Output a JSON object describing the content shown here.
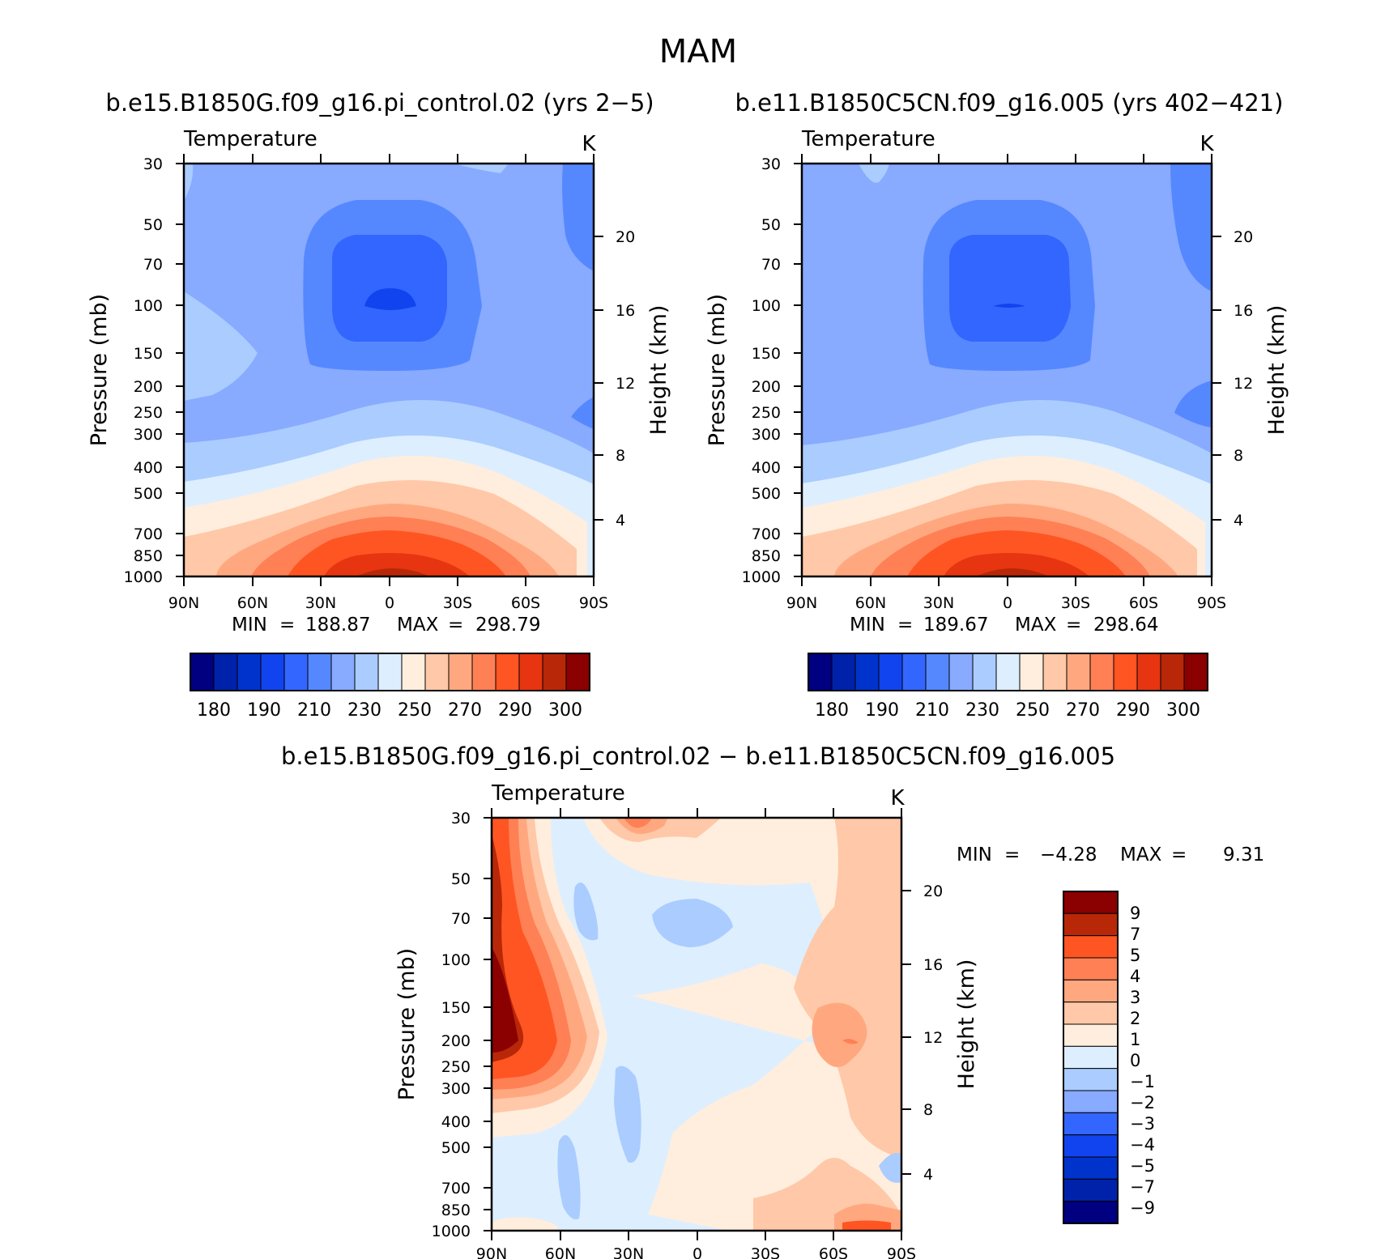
{
  "figure": {
    "season_title": "MAM"
  },
  "colors": {
    "abs_scale": [
      "#000080",
      "#0022AA",
      "#0033CC",
      "#1144EE",
      "#3366FF",
      "#5588FF",
      "#88AAFF",
      "#AACCFF",
      "#DDEEFF",
      "#FFEEDD",
      "#FFC8A8",
      "#FFA880",
      "#FF8055",
      "#FF5522",
      "#E63510",
      "#B82808",
      "#8B0000"
    ],
    "diff_scale": [
      "#000080",
      "#0022AA",
      "#0033CC",
      "#1144EE",
      "#3366FF",
      "#88AAFF",
      "#AACCFF",
      "#DDEEFF",
      "#FFEEDD",
      "#FFC8A8",
      "#FFA880",
      "#FF8055",
      "#FF5522",
      "#B82808",
      "#8B0000"
    ]
  },
  "chart_data": [
    {
      "type": "contour",
      "title": "b.e15.B1850G.f09_g16.pi_control.02 (yrs 2-5)",
      "variable": "Temperature",
      "units": "K",
      "ylabel": "Pressure (mb)",
      "y2label": "Height (km)",
      "x_ticks": [
        "90N",
        "60N",
        "30N",
        "0",
        "30S",
        "60S",
        "90S"
      ],
      "y_ticks": [
        "30",
        "50",
        "70",
        "100",
        "150",
        "200",
        "250",
        "300",
        "400",
        "500",
        "700",
        "850",
        "1000"
      ],
      "y2_ticks": [
        "20",
        "16",
        "12",
        "8",
        "4"
      ],
      "stats": {
        "min_label": "MIN",
        "min": "188.87",
        "max_label": "MAX",
        "max": "298.79"
      },
      "colorbar_labels": [
        "180",
        "190",
        "210",
        "230",
        "250",
        "270",
        "290",
        "300"
      ],
      "max_temp_lat": 0,
      "tropopause_core": {
        "lat": 0,
        "p_mb": 100,
        "value": 190
      }
    },
    {
      "type": "contour",
      "title": "b.e11.B1850C5CN.f09_g16.005 (yrs 402-421)",
      "variable": "Temperature",
      "units": "K",
      "ylabel": "Pressure (mb)",
      "y2label": "Height (km)",
      "x_ticks": [
        "90N",
        "60N",
        "30N",
        "0",
        "30S",
        "60S",
        "90S"
      ],
      "y_ticks": [
        "30",
        "50",
        "70",
        "100",
        "150",
        "200",
        "250",
        "300",
        "400",
        "500",
        "700",
        "850",
        "1000"
      ],
      "y2_ticks": [
        "20",
        "16",
        "12",
        "8",
        "4"
      ],
      "stats": {
        "min_label": "MIN",
        "min": "189.67",
        "max_label": "MAX",
        "max": "298.64"
      },
      "colorbar_labels": [
        "180",
        "190",
        "210",
        "230",
        "250",
        "270",
        "290",
        "300"
      ],
      "max_temp_lat": 0,
      "tropopause_core": {
        "lat": 0,
        "p_mb": 100,
        "value": 190
      }
    },
    {
      "type": "contour",
      "title": "b.e15.B1850G.f09_g16.pi_control.02 - b.e11.B1850C5CN.f09_g16.005",
      "variable": "Temperature",
      "units": "K",
      "ylabel": "Pressure (mb)",
      "y2label": "Height (km)",
      "x_ticks": [
        "90N",
        "60N",
        "30N",
        "0",
        "30S",
        "60S",
        "90S"
      ],
      "y_ticks": [
        "30",
        "50",
        "70",
        "100",
        "150",
        "200",
        "250",
        "300",
        "400",
        "500",
        "700",
        "850",
        "1000"
      ],
      "y2_ticks": [
        "20",
        "16",
        "12",
        "8",
        "4"
      ],
      "stats": {
        "min_label": "MIN",
        "min": "-4.28",
        "max_label": "MAX",
        "max": "9.31"
      },
      "colorbar_labels": [
        "9",
        "7",
        "5",
        "4",
        "3",
        "2",
        "1",
        "0",
        "-1",
        "-2",
        "-3",
        "-4",
        "-5",
        "-7",
        "-9"
      ],
      "warm_anomaly_core": {
        "lat": -90,
        "p_mb": 200,
        "value": 9
      },
      "secondary_warm_core": {
        "lat": 60,
        "p_mb": 200,
        "value": 3
      }
    }
  ]
}
